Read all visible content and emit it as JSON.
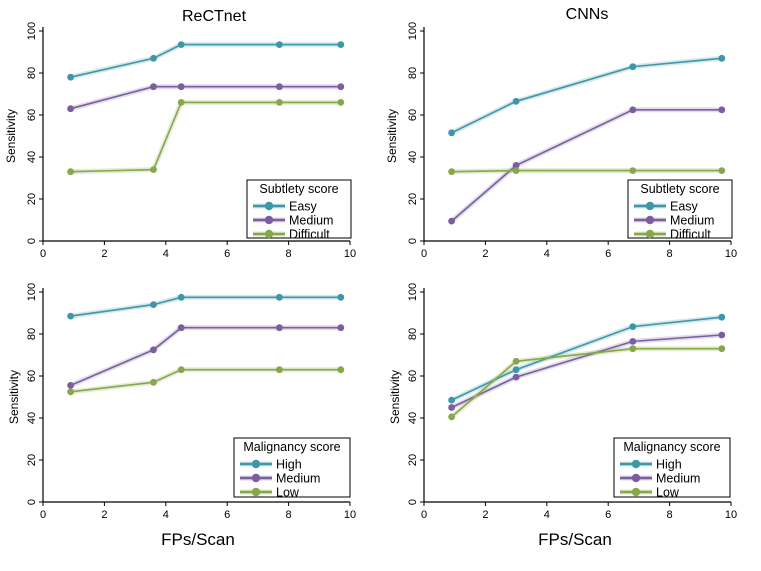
{
  "figure": {
    "column_titles": [
      "ReCTnet",
      "CNNs"
    ],
    "shared_xlabel": "FPs/Scan"
  },
  "chart_data": [
    {
      "type": "line",
      "title": "ReCTnet",
      "xlabel": "",
      "ylabel": "Sensitivity",
      "xlim": [
        0,
        10
      ],
      "ylim": [
        0,
        100
      ],
      "xticks": [
        0,
        2,
        4,
        6,
        8,
        10
      ],
      "yticks": [
        0,
        20,
        40,
        60,
        80,
        100
      ],
      "legend": {
        "title": "Subtlety score",
        "position": "bottom-right"
      },
      "series": [
        {
          "name": "Easy",
          "color": "#3e97a8",
          "x": [
            0.9,
            3.6,
            4.5,
            7.7,
            9.7
          ],
          "y": [
            78,
            87,
            93.5,
            93.5,
            93.5
          ]
        },
        {
          "name": "Medium",
          "color": "#7b5ea0",
          "x": [
            0.9,
            3.6,
            4.5,
            7.7,
            9.7
          ],
          "y": [
            63,
            73.5,
            73.5,
            73.5,
            73.5
          ]
        },
        {
          "name": "Difficult",
          "color": "#86a84a",
          "x": [
            0.9,
            3.6,
            4.5,
            7.7,
            9.7
          ],
          "y": [
            33,
            34,
            66,
            66,
            66
          ]
        }
      ]
    },
    {
      "type": "line",
      "title": "CNNs",
      "xlabel": "",
      "ylabel": "Sensitivity",
      "xlim": [
        0,
        10
      ],
      "ylim": [
        0,
        100
      ],
      "xticks": [
        0,
        2,
        4,
        6,
        8,
        10
      ],
      "yticks": [
        0,
        20,
        40,
        60,
        80,
        100
      ],
      "legend": {
        "title": "Subtlety score",
        "position": "bottom-right"
      },
      "series": [
        {
          "name": "Easy",
          "color": "#3e97a8",
          "x": [
            0.9,
            3.0,
            6.8,
            9.7
          ],
          "y": [
            51.5,
            66.5,
            83,
            87
          ]
        },
        {
          "name": "Medium",
          "color": "#7b5ea0",
          "x": [
            0.9,
            3.0,
            6.8,
            9.7
          ],
          "y": [
            9.5,
            36,
            62.5,
            62.5
          ]
        },
        {
          "name": "Difficult",
          "color": "#86a84a",
          "x": [
            0.9,
            3.0,
            6.8,
            9.7
          ],
          "y": [
            33,
            33.5,
            33.5,
            33.5
          ]
        }
      ]
    },
    {
      "type": "line",
      "title": "",
      "xlabel": "FPs/Scan",
      "ylabel": "Sensitivity",
      "xlim": [
        0,
        10
      ],
      "ylim": [
        0,
        100
      ],
      "xticks": [
        0,
        2,
        4,
        6,
        8,
        10
      ],
      "yticks": [
        0,
        20,
        40,
        60,
        80,
        100
      ],
      "legend": {
        "title": "Malignancy score",
        "position": "bottom-right"
      },
      "series": [
        {
          "name": "High",
          "color": "#3e97a8",
          "x": [
            0.9,
            3.6,
            4.5,
            7.7,
            9.7
          ],
          "y": [
            88.5,
            94,
            97.5,
            97.5,
            97.5
          ]
        },
        {
          "name": "Medium",
          "color": "#7b5ea0",
          "x": [
            0.9,
            3.6,
            4.5,
            7.7,
            9.7
          ],
          "y": [
            55.5,
            72.5,
            83,
            83,
            83
          ]
        },
        {
          "name": "Low",
          "color": "#86a84a",
          "x": [
            0.9,
            3.6,
            4.5,
            7.7,
            9.7
          ],
          "y": [
            52.5,
            57,
            63,
            63,
            63
          ]
        }
      ]
    },
    {
      "type": "line",
      "title": "",
      "xlabel": "FPs/Scan",
      "ylabel": "Sensitivity",
      "xlim": [
        0,
        10
      ],
      "ylim": [
        0,
        100
      ],
      "xticks": [
        0,
        2,
        4,
        6,
        8,
        10
      ],
      "yticks": [
        0,
        20,
        40,
        60,
        80,
        100
      ],
      "legend": {
        "title": "Malignancy score",
        "position": "bottom-right"
      },
      "series": [
        {
          "name": "High",
          "color": "#3e97a8",
          "x": [
            0.9,
            3.0,
            6.8,
            9.7
          ],
          "y": [
            48.5,
            63,
            83.5,
            88
          ]
        },
        {
          "name": "Medium",
          "color": "#7b5ea0",
          "x": [
            0.9,
            3.0,
            6.8,
            9.7
          ],
          "y": [
            45,
            59.5,
            76.5,
            79.5
          ]
        },
        {
          "name": "Low",
          "color": "#86a84a",
          "x": [
            0.9,
            3.0,
            6.8,
            9.7
          ],
          "y": [
            40.5,
            67,
            73,
            73
          ]
        }
      ]
    }
  ]
}
